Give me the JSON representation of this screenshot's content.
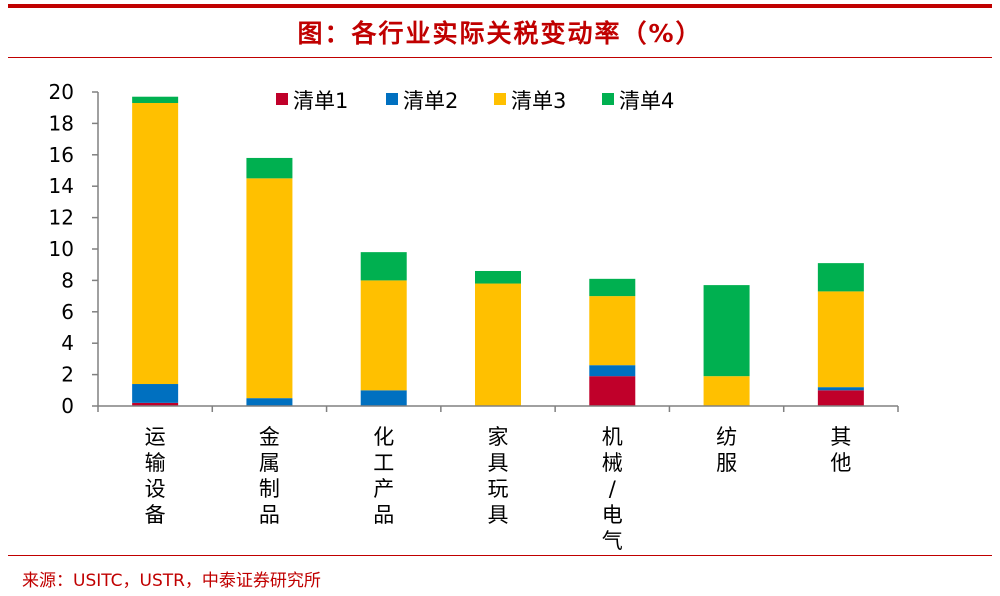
{
  "title": "图：各行业实际关税变动率（%）",
  "source": "来源：USITC，USTR，中泰证券研究所",
  "colors": {
    "accent": "#c00000",
    "list1": "#c0002a",
    "list2": "#0070c0",
    "list3": "#ffc000",
    "list4": "#00b050"
  },
  "chart_data": {
    "type": "bar",
    "stacked": true,
    "categories": [
      "运输设备",
      "金属制品",
      "化工产品",
      "家具玩具",
      "机械/电气",
      "纺服",
      "其他"
    ],
    "series": [
      {
        "name": "清单1",
        "color": "#c0002a",
        "values": [
          0.2,
          0.0,
          0.0,
          0.0,
          1.9,
          0.0,
          1.0
        ]
      },
      {
        "name": "清单2",
        "color": "#0070c0",
        "values": [
          1.2,
          0.5,
          1.0,
          0.0,
          0.7,
          0.0,
          0.2
        ]
      },
      {
        "name": "清单3",
        "color": "#ffc000",
        "values": [
          17.9,
          14.0,
          7.0,
          7.8,
          4.4,
          1.9,
          6.1
        ]
      },
      {
        "name": "清单4",
        "color": "#00b050",
        "values": [
          0.4,
          1.3,
          1.8,
          0.8,
          1.1,
          5.8,
          1.8
        ]
      }
    ],
    "ylim": [
      0,
      20
    ],
    "yticks": [
      0,
      2,
      4,
      6,
      8,
      10,
      12,
      14,
      16,
      18,
      20
    ],
    "legend_position": "top-center",
    "grid": false
  }
}
